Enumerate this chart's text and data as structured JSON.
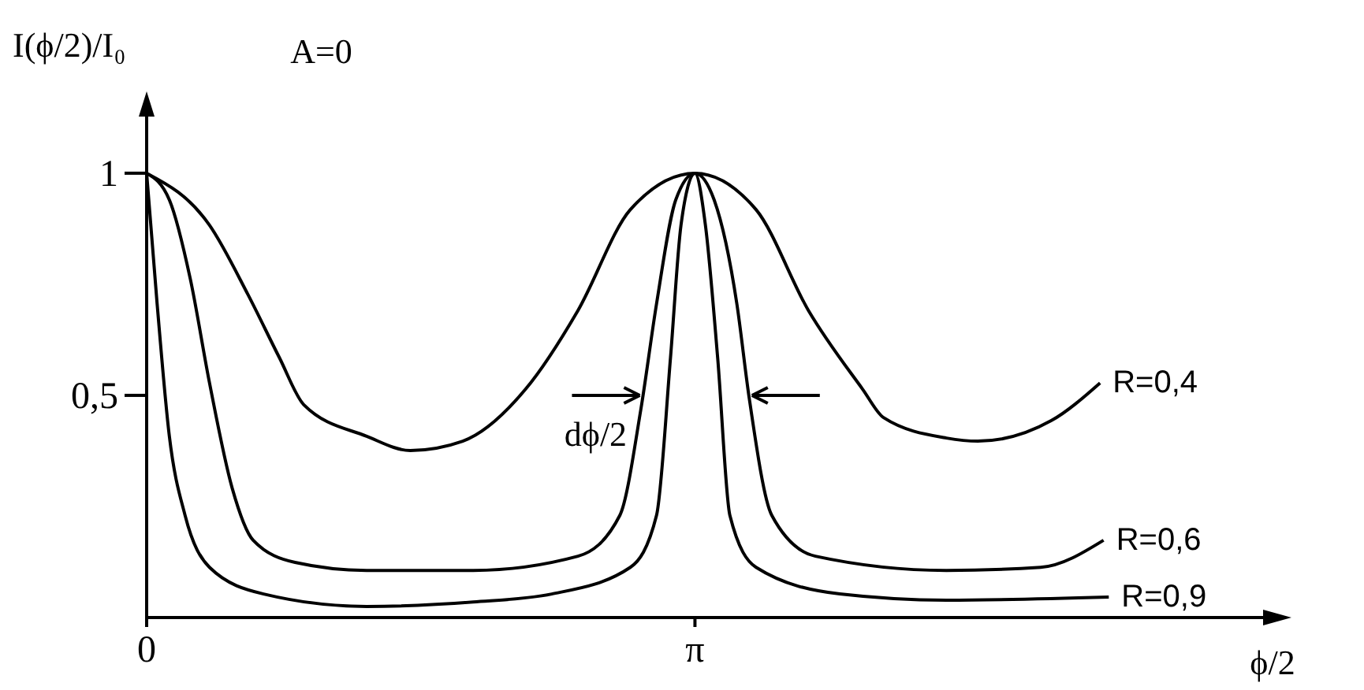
{
  "chart_data": {
    "type": "line",
    "title": "A=0",
    "xlabel": "ϕ/2",
    "ylabel": "I(ϕ/2)/I₀",
    "xlim": [
      0,
      6.52
    ],
    "xticks": [
      0,
      {
        "value": 3.14,
        "label": "π"
      }
    ],
    "ylim": [
      0,
      1.17
    ],
    "yticks": [
      {
        "value": 0.5,
        "label": "0,5"
      },
      1
    ],
    "grid": false,
    "marker": "none",
    "line_style": "solid",
    "annotations": [
      "dϕ/2"
    ],
    "series": [
      {
        "name": "R=0,4",
        "color": "#000000",
        "x": [
          0,
          0.36,
          0.58,
          0.76,
          0.9,
          1.26,
          1.51,
          1.81,
          2.17,
          2.47,
          2.77,
          3.14,
          3.49,
          3.79,
          4.1,
          4.22,
          4.58,
          4.76,
          5.18,
          5.46
        ],
        "values": [
          1,
          0.883,
          0.727,
          0.585,
          0.479,
          0.408,
          0.376,
          0.397,
          0.514,
          0.691,
          0.918,
          1,
          0.918,
          0.691,
          0.514,
          0.45,
          0.404,
          0.397,
          0.443,
          0.528
        ]
      },
      {
        "name": "R=0,6",
        "color": "#000000",
        "x": [
          0,
          0.13,
          0.25,
          0.36,
          0.49,
          0.61,
          0.85,
          1.26,
          1.87,
          2.47,
          2.71,
          2.83,
          2.92,
          3.03,
          3.14,
          3.25,
          3.38,
          3.45,
          3.58,
          3.83,
          4.58,
          5.12,
          5.48
        ],
        "values": [
          1,
          0.94,
          0.762,
          0.528,
          0.291,
          0.174,
          0.124,
          0.106,
          0.106,
          0.138,
          0.23,
          0.468,
          0.706,
          0.94,
          1,
          0.94,
          0.706,
          0.496,
          0.23,
          0.138,
          0.106,
          0.113,
          0.174
        ]
      },
      {
        "name": "R=0,9",
        "color": "#000000",
        "x": [
          0,
          0.06,
          0.13,
          0.22,
          0.36,
          0.67,
          1.26,
          1.87,
          2.32,
          2.77,
          2.92,
          3,
          3.06,
          3.14,
          3.2,
          3.27,
          3.34,
          3.49,
          3.97,
          4.58,
          5.51
        ],
        "values": [
          1,
          0.706,
          0.408,
          0.23,
          0.113,
          0.053,
          0.025,
          0.035,
          0.053,
          0.113,
          0.23,
          0.585,
          0.883,
          1,
          0.883,
          0.585,
          0.23,
          0.113,
          0.053,
          0.039,
          0.046
        ]
      }
    ]
  }
}
